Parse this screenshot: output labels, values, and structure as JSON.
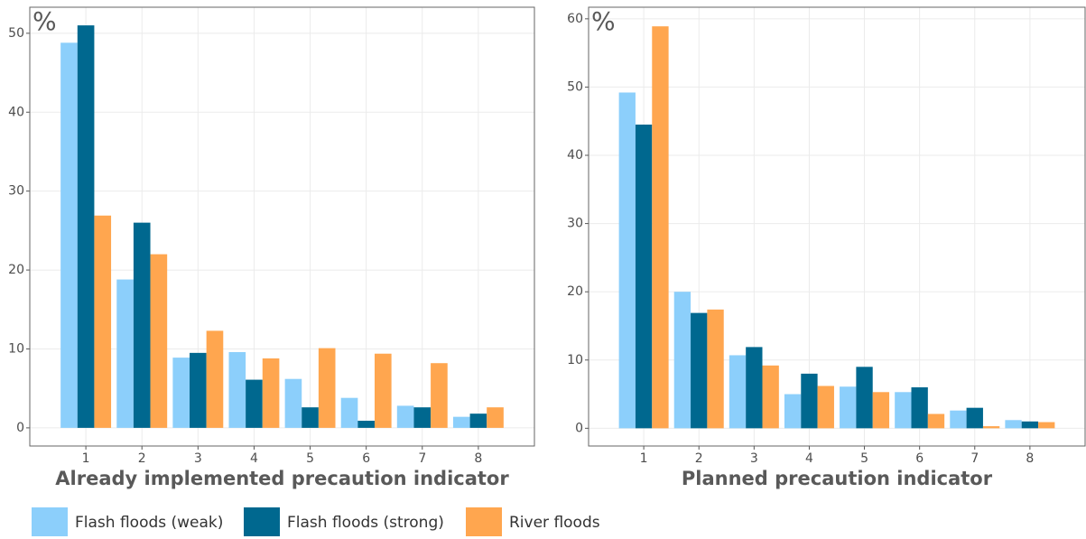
{
  "chart_data": [
    {
      "type": "bar",
      "y_label": "%",
      "xlabel": "Already implemented precaution indicator",
      "categories": [
        "1",
        "2",
        "3",
        "4",
        "5",
        "6",
        "7",
        "8"
      ],
      "series": [
        {
          "name": "Flash floods (weak)",
          "color": "#8ccffb",
          "values": [
            48.8,
            18.8,
            8.9,
            9.6,
            6.2,
            3.8,
            2.8,
            1.4
          ]
        },
        {
          "name": "Flash floods (strong)",
          "color": "#00688f",
          "values": [
            51,
            26,
            9.5,
            6.1,
            2.6,
            0.9,
            2.6,
            1.8
          ]
        },
        {
          "name": "River floods",
          "color": "#ffa64f",
          "values": [
            26.9,
            22,
            12.3,
            8.8,
            10.1,
            9.4,
            8.2,
            2.6
          ]
        }
      ],
      "ylim": [
        -2.3,
        53.3
      ],
      "yticks": [
        0,
        10,
        20,
        30,
        40,
        50
      ],
      "grid": true
    },
    {
      "type": "bar",
      "y_label": "%",
      "xlabel": "Planned precaution indicator",
      "categories": [
        "1",
        "2",
        "3",
        "4",
        "5",
        "6",
        "7",
        "8"
      ],
      "series": [
        {
          "name": "Flash floods (weak)",
          "color": "#8ccffb",
          "values": [
            49.2,
            20,
            10.7,
            5,
            6.1,
            5.3,
            2.6,
            1.2
          ]
        },
        {
          "name": "Flash floods (strong)",
          "color": "#00688f",
          "values": [
            44.5,
            16.9,
            11.9,
            8,
            9,
            6,
            3,
            1
          ]
        },
        {
          "name": "River floods",
          "color": "#ffa64f",
          "values": [
            58.9,
            17.4,
            9.2,
            6.2,
            5.3,
            2.1,
            0.3,
            0.9
          ]
        }
      ],
      "ylim": [
        -2.6,
        61.7
      ],
      "yticks": [
        0,
        10,
        20,
        30,
        40,
        50,
        60
      ],
      "grid": true
    }
  ]
}
